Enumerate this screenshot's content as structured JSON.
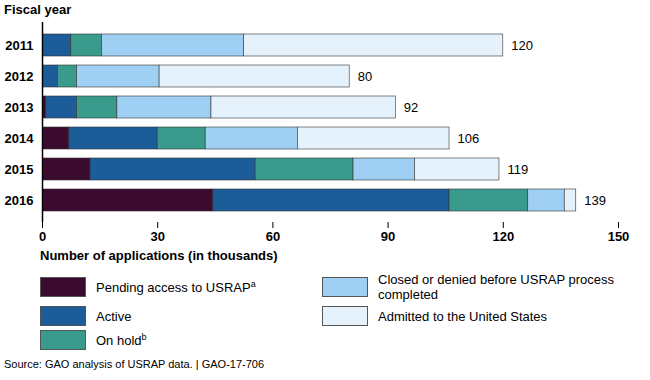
{
  "chart_data": {
    "type": "bar",
    "orientation": "horizontal",
    "stacked": true,
    "ylabel": "Fiscal year",
    "xlabel": "Number of applications (in thousands)",
    "source": "Source: GAO analysis of USRAP data. | GAO-17-706",
    "categories": [
      "2011",
      "2012",
      "2013",
      "2014",
      "2015",
      "2016"
    ],
    "series": [
      {
        "name": "Pending access to USRAP",
        "footnote": "a",
        "color": "#3b0b2f",
        "values": [
          0,
          0,
          1,
          7,
          12.5,
          44.5
        ]
      },
      {
        "name": "Active",
        "color": "#1c5c98",
        "values": [
          7.5,
          4,
          8,
          23,
          43,
          61.5
        ]
      },
      {
        "name": "On hold",
        "footnote": "b",
        "color": "#3a9a8b",
        "values": [
          8,
          5,
          10.5,
          12.5,
          25.5,
          20.5
        ]
      },
      {
        "name": "Closed or denied before USRAP process completed",
        "color": "#9fd0f3",
        "values": [
          37,
          21.5,
          24.5,
          24,
          16,
          9.5
        ]
      },
      {
        "name": "Admitted to the United States",
        "color": "#e6f2fb",
        "values": [
          67.5,
          49.5,
          48,
          39.5,
          22,
          3
        ]
      }
    ],
    "totals": [
      120,
      80,
      92,
      106,
      119,
      139
    ],
    "xlim": [
      0,
      150
    ],
    "xticks": [
      0,
      30,
      60,
      90,
      120,
      150
    ],
    "legend": "bottom",
    "grid": false
  }
}
